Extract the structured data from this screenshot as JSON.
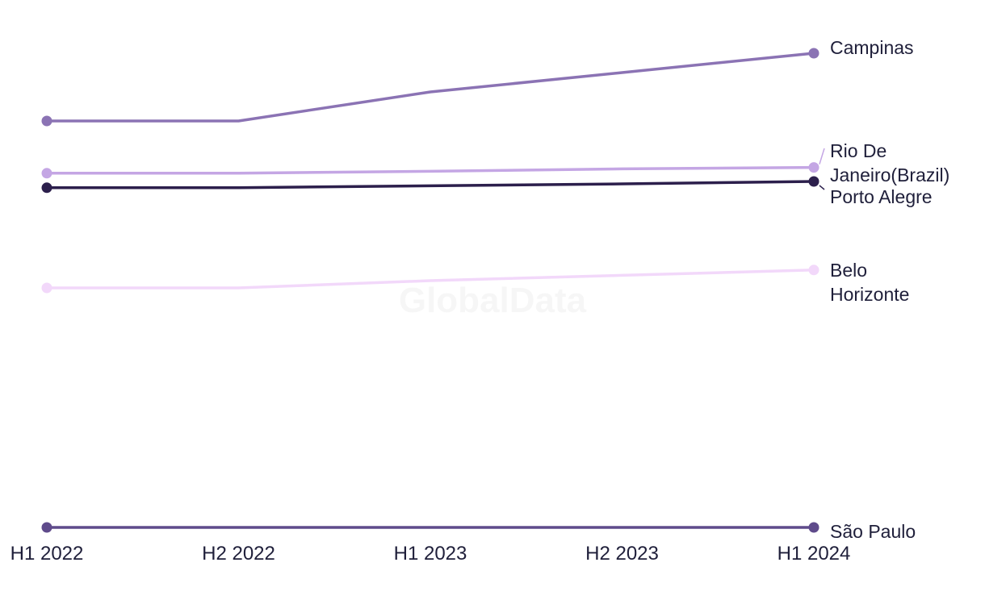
{
  "watermark": "GlobalData",
  "chart_data": {
    "type": "line",
    "categories": [
      "H1 2022",
      "H2 2022",
      "H1 2023",
      "H2 2023",
      "H1 2024"
    ],
    "ylim": [
      0,
      100
    ],
    "grid": false,
    "legend": "none (direct labels at right end)",
    "series": [
      {
        "name": "Campinas",
        "label_lines": [
          "Campinas"
        ],
        "color": "#8b73b4",
        "values": [
          84,
          84,
          90,
          94,
          98
        ]
      },
      {
        "name": "Rio De Janeiro(Brazil)",
        "label_lines": [
          "Rio De",
          "Janeiro(Brazil)"
        ],
        "color": "#c4a6e4",
        "values": [
          73.2,
          73.2,
          73.6,
          74.1,
          74.4
        ]
      },
      {
        "name": "Porto Alegre",
        "label_lines": [
          "Porto Alegre"
        ],
        "color": "#2c1f4c",
        "values": [
          70.2,
          70.2,
          70.6,
          71.0,
          71.5
        ]
      },
      {
        "name": "Belo Horizonte",
        "label_lines": [
          "Belo",
          "Horizonte"
        ],
        "color": "#f2d8fa",
        "values": [
          49.5,
          49.5,
          51.0,
          52.1,
          53.2
        ]
      },
      {
        "name": "São Paulo",
        "label_lines": [
          "São Paulo"
        ],
        "color": "#5f4b8b",
        "values": [
          0,
          0,
          0,
          0,
          0
        ]
      }
    ]
  }
}
